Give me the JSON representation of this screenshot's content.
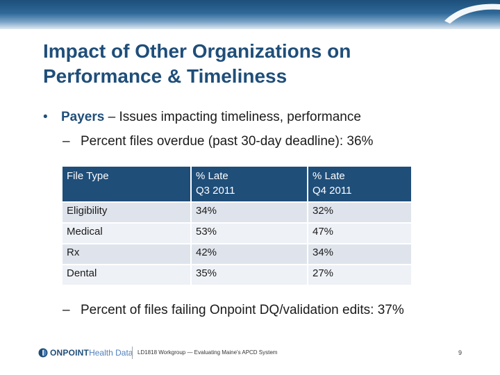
{
  "slide": {
    "title_line1": "Impact of Other Organizations on",
    "title_line2": "Performance & Timeliness",
    "bullet": {
      "marker": "•",
      "bold_term": "Payers",
      "text": " – Issues impacting timeliness, performance"
    },
    "sub_bullets": [
      {
        "dash": "–",
        "text": "Percent files overdue (past 30-day deadline): 36%"
      },
      {
        "dash": "–",
        "text": "Percent of files failing Onpoint DQ/validation edits: 37%"
      }
    ],
    "table": {
      "headers": [
        {
          "line1": "File Type",
          "line2": ""
        },
        {
          "line1": "% Late",
          "line2": "Q3 2011"
        },
        {
          "line1": "% Late",
          "line2": "Q4 2011"
        }
      ],
      "rows": [
        [
          "Eligibility",
          "34%",
          "32%"
        ],
        [
          "Medical",
          "53%",
          "47%"
        ],
        [
          "Rx",
          "42%",
          "34%"
        ],
        [
          "Dental",
          "35%",
          "27%"
        ]
      ]
    }
  },
  "footer": {
    "logo_part1": "ONPOINT",
    "logo_part2": "Health Data",
    "text": "LD1818 Workgroup — Evaluating Maine's APCD System",
    "page_number": "9"
  },
  "colors": {
    "accent": "#1f4e79",
    "table_row_odd": "#dfe4ec",
    "table_row_even": "#eef1f6"
  }
}
